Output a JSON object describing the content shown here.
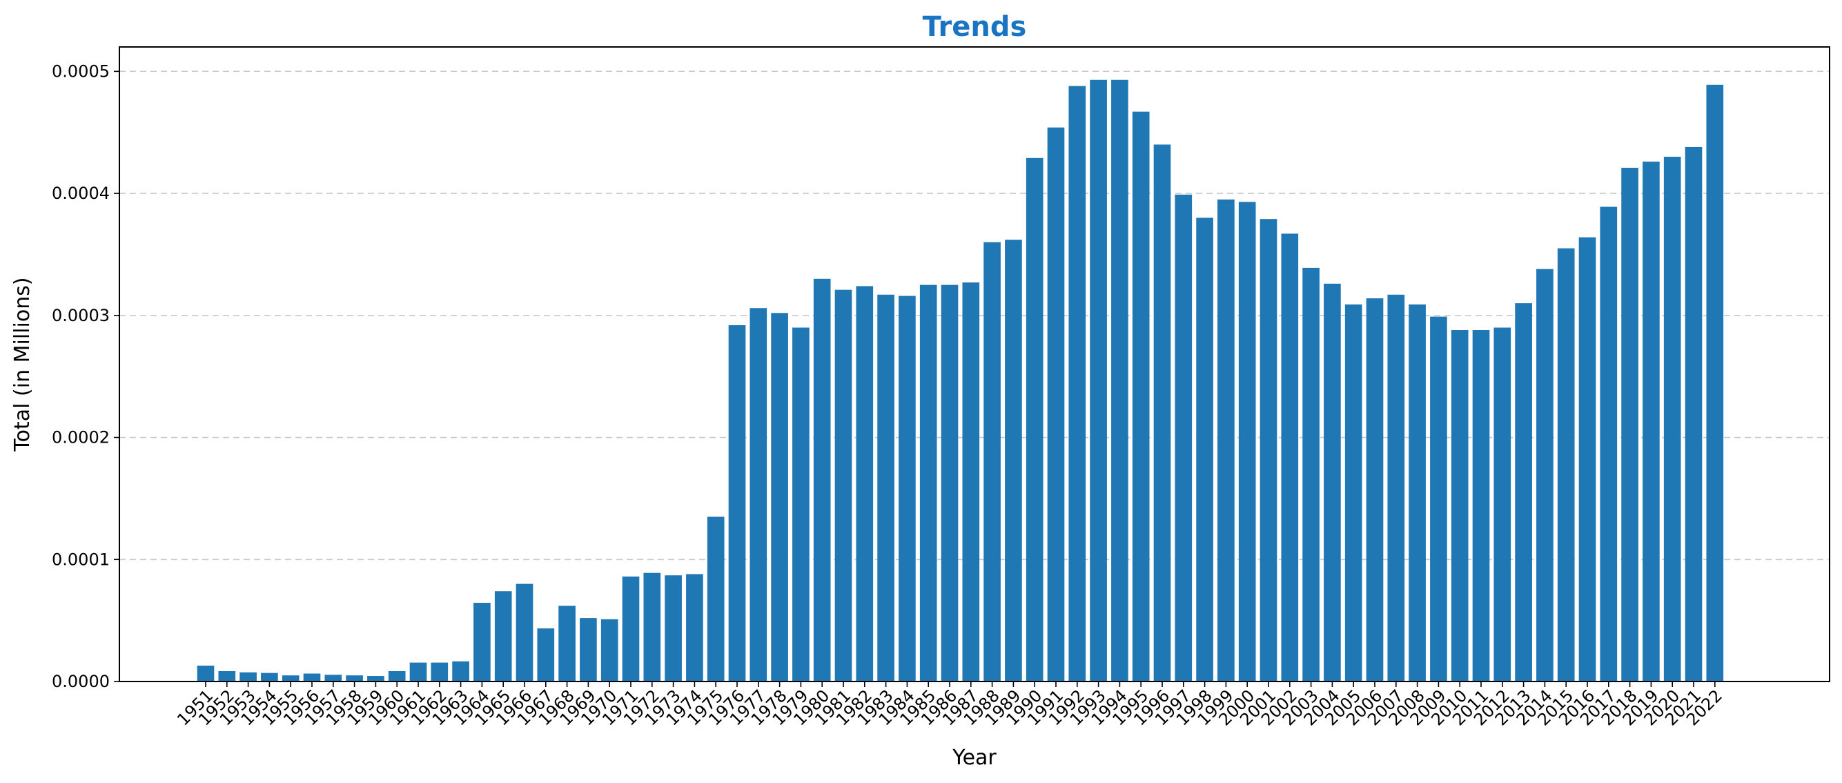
{
  "chart_data": {
    "type": "bar",
    "title": "Trends",
    "xlabel": "Year",
    "ylabel": "Total (in Millions)",
    "ylim": [
      0,
      0.00052
    ],
    "yticks": [
      "0.0000",
      "0.0001",
      "0.0002",
      "0.0003",
      "0.0004",
      "0.0005"
    ],
    "grid": "y-dashed",
    "colors": {
      "bar": "#1f77b4",
      "title": "#1a74c4",
      "grid": "#c8c8c8"
    },
    "categories": [
      "1951",
      "1952",
      "1953",
      "1954",
      "1955",
      "1956",
      "1957",
      "1958",
      "1959",
      "1960",
      "1961",
      "1962",
      "1963",
      "1964",
      "1965",
      "1966",
      "1967",
      "1968",
      "1969",
      "1970",
      "1971",
      "1972",
      "1973",
      "1974",
      "1975",
      "1976",
      "1977",
      "1978",
      "1979",
      "1980",
      "1981",
      "1982",
      "1983",
      "1984",
      "1985",
      "1986",
      "1987",
      "1988",
      "1989",
      "1990",
      "1991",
      "1992",
      "1993",
      "1994",
      "1995",
      "1996",
      "1997",
      "1998",
      "1999",
      "2000",
      "2001",
      "2002",
      "2003",
      "2004",
      "2005",
      "2006",
      "2007",
      "2008",
      "2009",
      "2010",
      "2011",
      "2012",
      "2013",
      "2014",
      "2015",
      "2016",
      "2017",
      "2018",
      "2019",
      "2020",
      "2021",
      "2022"
    ],
    "values": [
      1.3e-05,
      8.5e-06,
      7.5e-06,
      7e-06,
      5e-06,
      6.5e-06,
      5.5e-06,
      5e-06,
      4.5e-06,
      8.5e-06,
      1.55e-05,
      1.55e-05,
      1.65e-05,
      6.45e-05,
      7.4e-05,
      8e-05,
      4.35e-05,
      6.2e-05,
      5.2e-05,
      5.1e-05,
      8.6e-05,
      8.9e-05,
      8.7e-05,
      8.8e-05,
      0.000135,
      0.000292,
      0.000306,
      0.000302,
      0.00029,
      0.00033,
      0.000321,
      0.000324,
      0.000317,
      0.000316,
      0.000325,
      0.000325,
      0.000327,
      0.00036,
      0.000362,
      0.000429,
      0.000454,
      0.000488,
      0.000493,
      0.000493,
      0.000467,
      0.00044,
      0.000399,
      0.00038,
      0.000395,
      0.000393,
      0.000379,
      0.000367,
      0.000339,
      0.000326,
      0.000309,
      0.000314,
      0.000317,
      0.000309,
      0.000299,
      0.000288,
      0.000288,
      0.00029,
      0.00031,
      0.000338,
      0.000355,
      0.000364,
      0.000389,
      0.000421,
      0.000426,
      0.00043,
      0.000438,
      0.000489
    ]
  }
}
